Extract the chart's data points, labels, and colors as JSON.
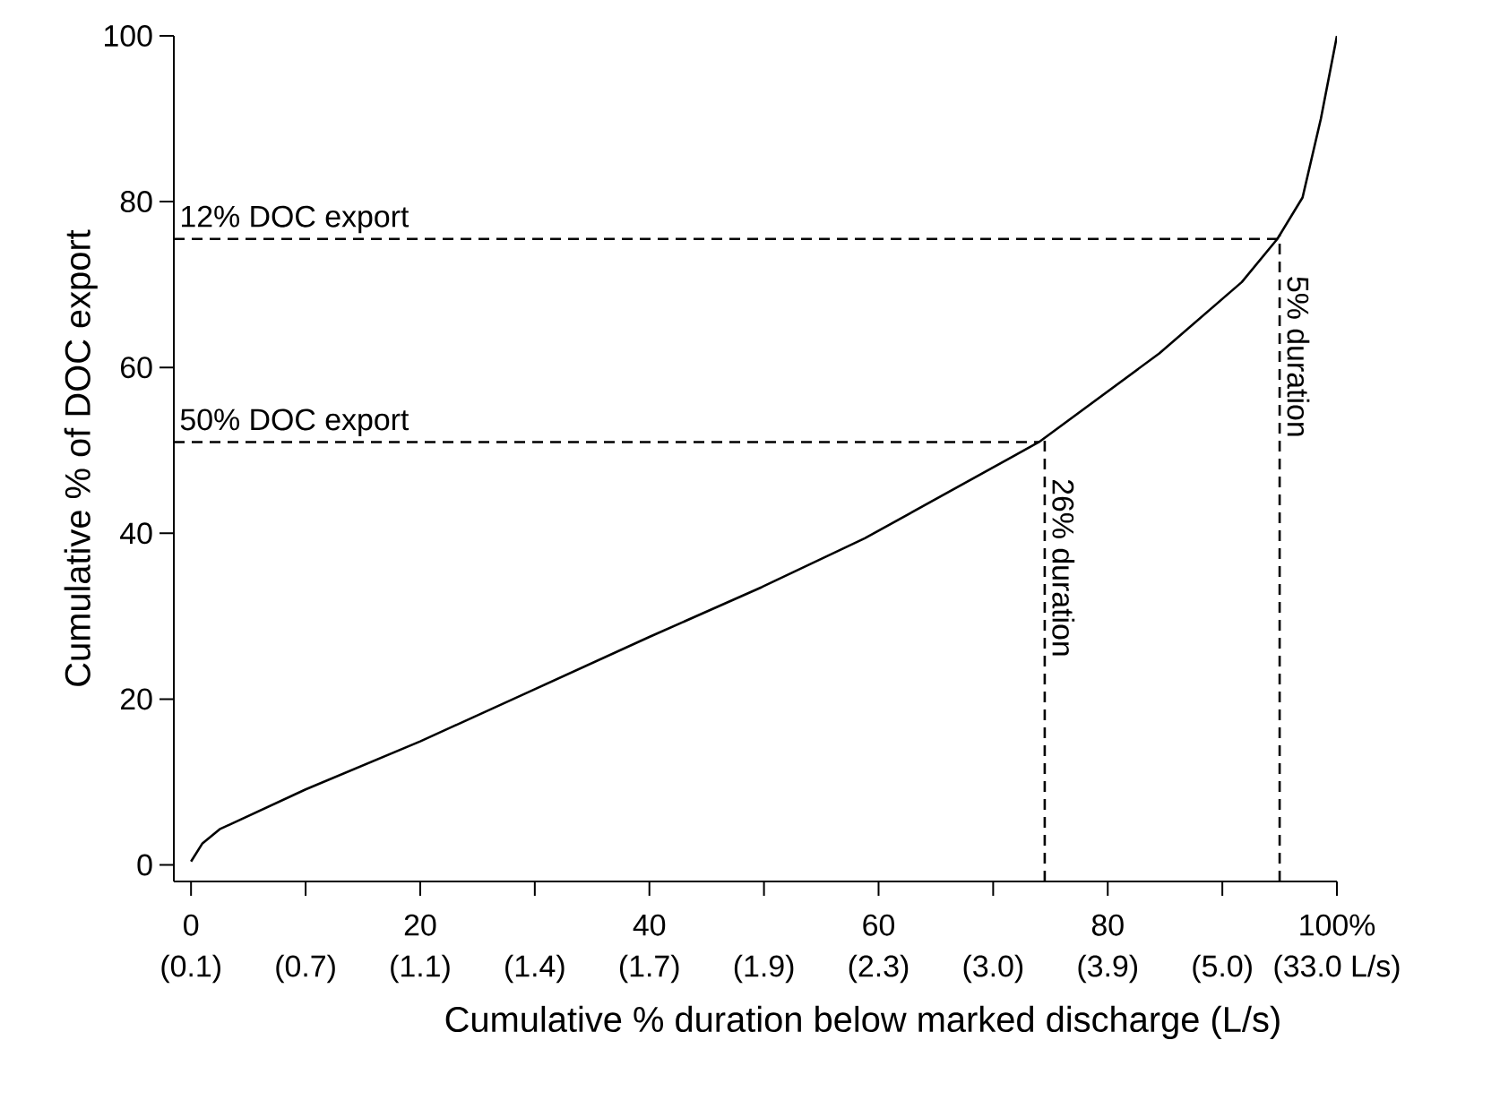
{
  "chart_data": {
    "type": "line",
    "xlabel": "Cumulative % duration below marked discharge (L/s)",
    "ylabel": "Cumulative % of DOC export",
    "x": [
      0,
      1,
      2.5,
      10,
      20,
      29.7,
      40,
      49.8,
      58.8,
      74,
      84.5,
      91.7,
      94.8,
      97,
      98.6,
      100
    ],
    "series": [
      {
        "color": "#000000",
        "values": [
          0.4,
          2.6,
          4.3,
          9.1,
          14.9,
          21,
          27.5,
          33.5,
          39.4,
          51,
          61.7,
          70.3,
          75.5,
          80.5,
          90,
          100
        ]
      }
    ],
    "xlim": [
      -1.5,
      100
    ],
    "ylim": [
      -2,
      100
    ],
    "xticks": [
      {
        "value": 0,
        "label": "0"
      },
      {
        "value": 10,
        "label": null
      },
      {
        "value": 20,
        "label": "20"
      },
      {
        "value": 30,
        "label": null
      },
      {
        "value": 40,
        "label": "40"
      },
      {
        "value": 50,
        "label": null
      },
      {
        "value": 60,
        "label": "60"
      },
      {
        "value": 70,
        "label": null
      },
      {
        "value": 80,
        "label": "80"
      },
      {
        "value": 90,
        "label": null
      },
      {
        "value": 100,
        "label": "100%"
      }
    ],
    "yticks": [
      0,
      20,
      40,
      60,
      80,
      100
    ],
    "annotations": [
      "(0.1)",
      "(0.7)",
      "(1.1)",
      "(1.4)",
      "(1.7)",
      "(1.9)",
      "(2.3)",
      "(3.0)",
      "(3.9)",
      "(5.0)",
      "(33.0 L/s)"
    ],
    "ref_lines": [
      {
        "axis": "y",
        "value": 75.5,
        "label": "12% DOC export",
        "line_style": "dashed"
      },
      {
        "axis": "y",
        "value": 51,
        "label": "50% DOC export",
        "line_style": "dashed"
      },
      {
        "axis": "x",
        "value": 74.5,
        "label": "26% duration",
        "line_style": "dashed"
      },
      {
        "axis": "x",
        "value": 95,
        "label": "5% duration",
        "line_style": "dashed"
      }
    ],
    "grid": false,
    "marker": "none",
    "line_style": "solid"
  }
}
